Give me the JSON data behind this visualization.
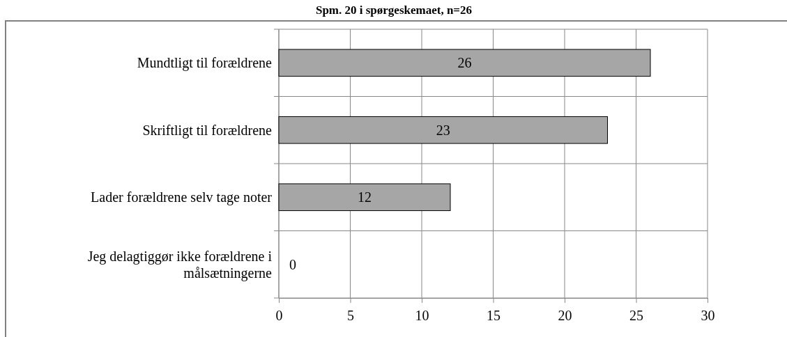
{
  "chart_data": {
    "type": "bar",
    "orientation": "horizontal",
    "title": "Spm. 20 i spørgeskemaet, n=26",
    "categories": [
      "Mundtligt til forældrene",
      "Skriftligt til forældrene",
      "Lader forældrene selv tage noter",
      "Jeg delagtiggør ikke forældrene i målsætningerne"
    ],
    "values": [
      26,
      23,
      12,
      0
    ],
    "color": "#a6a6a6",
    "xlim": [
      0,
      30
    ],
    "xticks": [
      0,
      5,
      10,
      15,
      20,
      25,
      30
    ],
    "grid": true,
    "data_labels": true
  }
}
